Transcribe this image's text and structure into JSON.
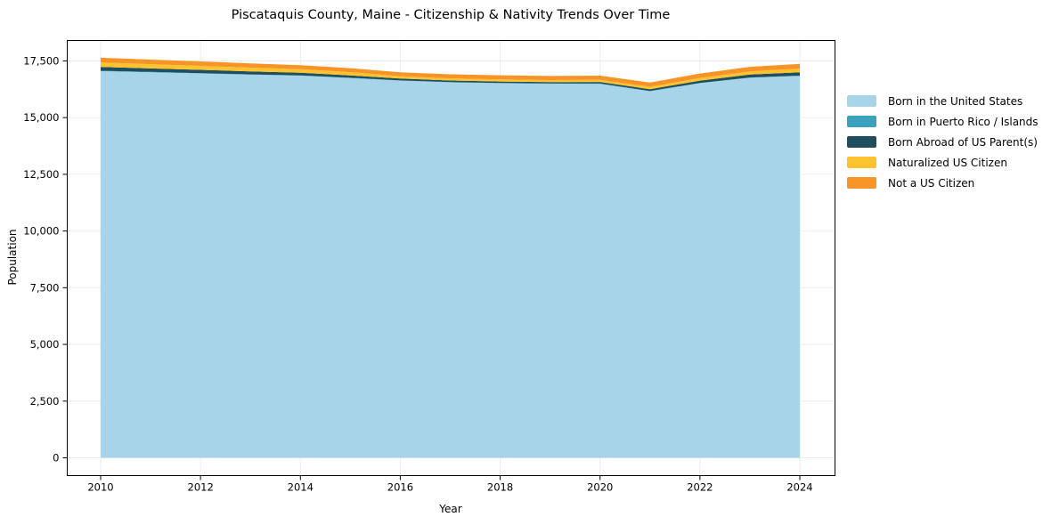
{
  "chart_data": {
    "type": "area",
    "stacked": true,
    "title": "Piscataquis County, Maine - Citizenship & Nativity Trends Over Time",
    "xlabel": "Year",
    "ylabel": "Population",
    "x": [
      2010,
      2011,
      2012,
      2013,
      2014,
      2015,
      2016,
      2017,
      2018,
      2019,
      2020,
      2021,
      2022,
      2023,
      2024
    ],
    "series": [
      {
        "name": "Born in the United States",
        "color": "#a7d4e8",
        "values": [
          17050,
          17000,
          16950,
          16895,
          16850,
          16745,
          16630,
          16555,
          16515,
          16495,
          16490,
          16160,
          16520,
          16755,
          16835
        ]
      },
      {
        "name": "Born in Puerto Rico / Islands",
        "color": "#3aa2bc",
        "values": [
          15,
          15,
          12,
          12,
          10,
          10,
          10,
          10,
          10,
          10,
          10,
          10,
          10,
          12,
          15
        ]
      },
      {
        "name": "Born Abroad of US Parent(s)",
        "color": "#1f4e5f",
        "values": [
          170,
          155,
          145,
          132,
          120,
          105,
          85,
          70,
          65,
          60,
          70,
          80,
          100,
          130,
          150
        ]
      },
      {
        "name": "Naturalized US Citizen",
        "color": "#fdc32f",
        "values": [
          195,
          185,
          175,
          165,
          155,
          145,
          100,
          95,
          90,
          90,
          95,
          110,
          120,
          140,
          160
        ]
      },
      {
        "name": "Not a US Citizen",
        "color": "#f79428",
        "values": [
          210,
          200,
          195,
          188,
          180,
          175,
          175,
          180,
          185,
          180,
          185,
          190,
          195,
          200,
          210
        ]
      }
    ],
    "x_ticks": [
      2010,
      2012,
      2014,
      2016,
      2018,
      2020,
      2022,
      2024
    ],
    "y_ticks": [
      {
        "value": 0,
        "label": "0"
      },
      {
        "value": 2500,
        "label": "2,500"
      },
      {
        "value": 5000,
        "label": "5,000"
      },
      {
        "value": 7500,
        "label": "7,500"
      },
      {
        "value": 10000,
        "label": "10,000"
      },
      {
        "value": 12500,
        "label": "12,500"
      },
      {
        "value": 15000,
        "label": "15,000"
      },
      {
        "value": 17500,
        "label": "17,500"
      }
    ],
    "ylim": [
      0,
      18400
    ],
    "grid": true,
    "legend_position": "right",
    "grid_color": "#ebebeb",
    "axis_color": "#000000"
  }
}
